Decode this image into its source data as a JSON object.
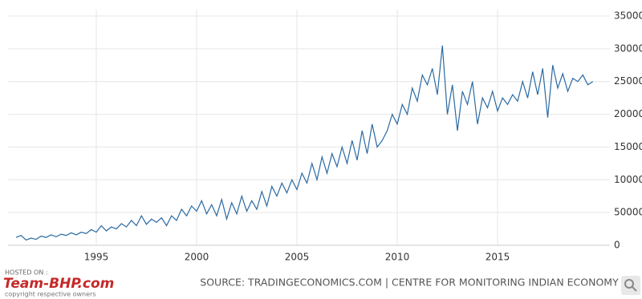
{
  "chart_data": {
    "type": "line",
    "source": "SOURCE: TRADINGECONOMICS.COM | CENTRE FOR MONITORING INDIAN ECONOMY",
    "watermark": {
      "hosted": "HOSTED ON :",
      "brand": "Team-BHP.com",
      "copyright": "copyright respective owners"
    },
    "color": "#2a6aa3",
    "grid": true,
    "xlim": [
      1990.6,
      2020.6
    ],
    "xticks": [
      1995,
      2000,
      2005,
      2010,
      2015
    ],
    "ylim": [
      0,
      350000
    ],
    "yticks": [
      0,
      50000,
      100000,
      150000,
      200000,
      250000,
      300000,
      350000
    ],
    "x": [
      1991,
      1991.25,
      1991.5,
      1991.75,
      1992,
      1992.25,
      1992.5,
      1992.75,
      1993,
      1993.25,
      1993.5,
      1993.75,
      1994,
      1994.25,
      1994.5,
      1994.75,
      1995,
      1995.25,
      1995.5,
      1995.75,
      1996,
      1996.25,
      1996.5,
      1996.75,
      1997,
      1997.25,
      1997.5,
      1997.75,
      1998,
      1998.25,
      1998.5,
      1998.75,
      1999,
      1999.25,
      1999.5,
      1999.75,
      2000,
      2000.25,
      2000.5,
      2000.75,
      2001,
      2001.25,
      2001.5,
      2001.75,
      2002,
      2002.25,
      2002.5,
      2002.75,
      2003,
      2003.25,
      2003.5,
      2003.75,
      2004,
      2004.25,
      2004.5,
      2004.75,
      2005,
      2005.25,
      2005.5,
      2005.75,
      2006,
      2006.25,
      2006.5,
      2006.75,
      2007,
      2007.25,
      2007.5,
      2007.75,
      2008,
      2008.25,
      2008.5,
      2008.75,
      2009,
      2009.25,
      2009.5,
      2009.75,
      2010,
      2010.25,
      2010.5,
      2010.75,
      2011,
      2011.25,
      2011.5,
      2011.75,
      2012,
      2012.25,
      2012.5,
      2012.75,
      2013,
      2013.25,
      2013.5,
      2013.75,
      2014,
      2014.25,
      2014.5,
      2014.75,
      2015,
      2015.25,
      2015.5,
      2015.75,
      2016,
      2016.25,
      2016.5,
      2016.75,
      2017,
      2017.25,
      2017.5,
      2017.75,
      2018,
      2018.25,
      2018.5,
      2018.75,
      2019,
      2019.25,
      2019.5,
      2019.75
    ],
    "values": [
      12000,
      15000,
      8000,
      11000,
      9000,
      14000,
      12000,
      16000,
      13000,
      17000,
      15000,
      19000,
      16000,
      20000,
      18000,
      24000,
      20000,
      30000,
      22000,
      28000,
      25000,
      33000,
      28000,
      38000,
      30000,
      45000,
      32000,
      40000,
      35000,
      42000,
      30000,
      45000,
      38000,
      55000,
      45000,
      60000,
      52000,
      68000,
      48000,
      62000,
      45000,
      70000,
      40000,
      65000,
      48000,
      75000,
      52000,
      68000,
      55000,
      82000,
      60000,
      90000,
      75000,
      95000,
      80000,
      100000,
      85000,
      110000,
      95000,
      125000,
      100000,
      135000,
      110000,
      140000,
      120000,
      150000,
      125000,
      160000,
      130000,
      175000,
      140000,
      185000,
      150000,
      160000,
      175000,
      200000,
      185000,
      215000,
      200000,
      240000,
      220000,
      260000,
      245000,
      270000,
      230000,
      305000,
      200000,
      245000,
      175000,
      235000,
      215000,
      250000,
      185000,
      225000,
      210000,
      235000,
      205000,
      225000,
      215000,
      230000,
      220000,
      250000,
      225000,
      265000,
      230000,
      270000,
      195000,
      275000,
      240000,
      262000,
      235000,
      255000,
      250000,
      260000,
      245000,
      250000
    ]
  }
}
